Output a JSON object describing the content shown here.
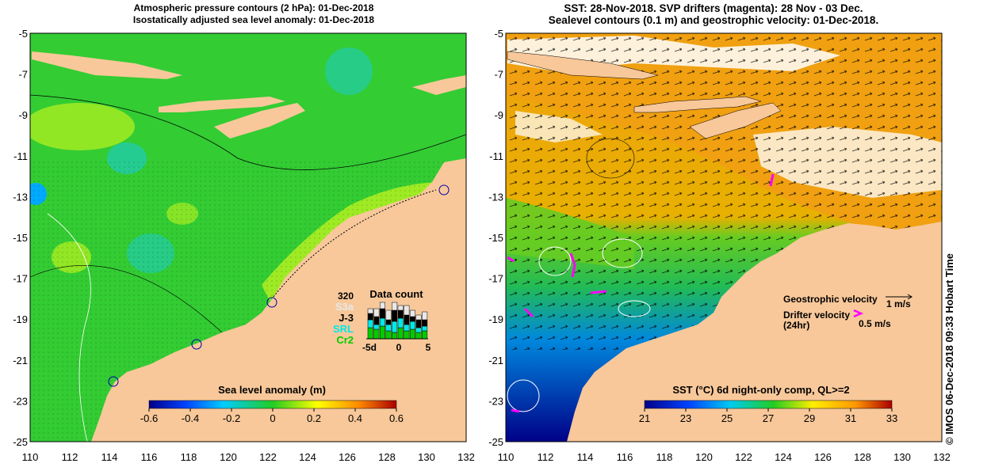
{
  "left_panel": {
    "title_line1": "Atmospheric pressure contours (2 hPa): 01-Dec-2018",
    "title_line2": "Isostatically adjusted sea level anomaly: 01-Dec-2018",
    "colorbar": {
      "label": "Sea level anomaly (m)",
      "ticks": [
        "-0.6",
        "-0.4",
        "-0.2",
        "0",
        "0.2",
        "0.4",
        "0.6"
      ]
    },
    "data_count": {
      "title": "Data count",
      "top_value": "320",
      "satellites": [
        {
          "label": "S3a",
          "color": "#e8e8e8"
        },
        {
          "label": "J-3",
          "color": "#000000"
        },
        {
          "label": "SRL",
          "color": "#00e8e8"
        },
        {
          "label": "Cr2",
          "color": "#00cc00"
        }
      ],
      "axis_labels": [
        "-5d",
        "0",
        "5"
      ]
    }
  },
  "right_panel": {
    "title_line1": "SST: 28-Nov-2018. SVP drifters (magenta): 28 Nov - 03 Dec.",
    "title_line2": "Sealevel contours (0.1 m) and geostrophic velocity: 01-Dec-2018.",
    "colorbar": {
      "label": "SST (°C) 6d night-only comp, QL>=2",
      "ticks": [
        "21",
        "23",
        "25",
        "27",
        "29",
        "31",
        "33"
      ]
    },
    "legend": {
      "geostrophic_label": "Geostrophic velocity",
      "geostrophic_scale": "1 m/s",
      "drifter_label_line1": "Drifter velocity",
      "drifter_label_line2": "(24hr)",
      "drifter_scale": "0.5 m/s"
    }
  },
  "axes": {
    "x_ticks": [
      "110",
      "112",
      "114",
      "116",
      "118",
      "120",
      "122",
      "124",
      "126",
      "128",
      "130",
      "132"
    ],
    "y_ticks": [
      "-5",
      "-7",
      "-9",
      "-11",
      "-13",
      "-15",
      "-17",
      "-19",
      "-21",
      "-23",
      "-25"
    ]
  },
  "credit": "© IMOS 06-Dec-2018 09:33 Hobart Time",
  "colors": {
    "land": "#f8c89a",
    "drifter": "#ff00ff",
    "ocean_green": "#33cc33"
  }
}
